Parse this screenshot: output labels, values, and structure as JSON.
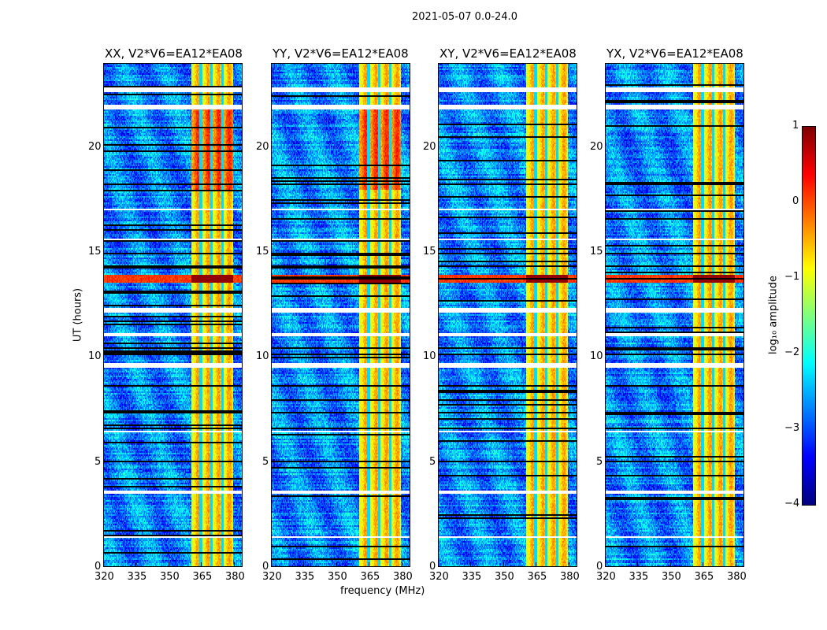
{
  "chart_data": {
    "type": "heatmap",
    "title": "2021-05-07 0.0-24.0",
    "xlabel": "frequency (MHz)",
    "ylabel": "UT (hours)",
    "xlim": [
      320,
      384
    ],
    "ylim": [
      0,
      24
    ],
    "xticks": [
      320,
      335,
      350,
      365,
      380
    ],
    "yticks": [
      0,
      5,
      10,
      15,
      20
    ],
    "panels": [
      {
        "title": "XX, V2*V6=EA12*EA08"
      },
      {
        "title": "YY, V2*V6=EA12*EA08"
      },
      {
        "title": "XY, V2*V6=EA12*EA08"
      },
      {
        "title": "YX, V2*V6=EA12*EA08"
      }
    ],
    "colorbar": {
      "label": "log₁₀ amplitude",
      "range": [
        -4,
        1
      ],
      "ticks": [
        "1",
        "0",
        "−1",
        "−2",
        "−3",
        "−4"
      ],
      "colormap": "jet"
    },
    "background_level": -2.7,
    "bright_band_mhz": [
      360.5,
      380
    ],
    "bright_band_level": -0.7,
    "dark_channels_mhz": [
      365,
      370,
      375
    ],
    "rfi_hours": [
      13.55,
      13.9
    ],
    "flagged_hours": [
      [
        22.65,
        22.9
      ],
      [
        21.85,
        22.05
      ],
      [
        17.0,
        17.05
      ],
      [
        15.6,
        15.65
      ],
      [
        12.15,
        12.35
      ],
      [
        10.95,
        11.1
      ],
      [
        9.45,
        9.7
      ],
      [
        6.4,
        6.5
      ],
      [
        3.45,
        3.6
      ],
      [
        1.35,
        1.45
      ],
      [
        0.95,
        1.0
      ]
    ],
    "blank_hours": [
      [
        13.0,
        13.05
      ],
      [
        11.7,
        11.75
      ],
      [
        10.4,
        10.45
      ],
      [
        10.1,
        10.15
      ],
      [
        9.0,
        9.05
      ],
      [
        8.6,
        8.65
      ],
      [
        7.3,
        7.35
      ],
      [
        6.55,
        6.6
      ],
      [
        5.0,
        5.02
      ],
      [
        14.9,
        14.95
      ],
      [
        14.3,
        14.35
      ],
      [
        18.2,
        18.25
      ],
      [
        19.9,
        19.95
      ],
      [
        20.3,
        20.35
      ]
    ]
  }
}
